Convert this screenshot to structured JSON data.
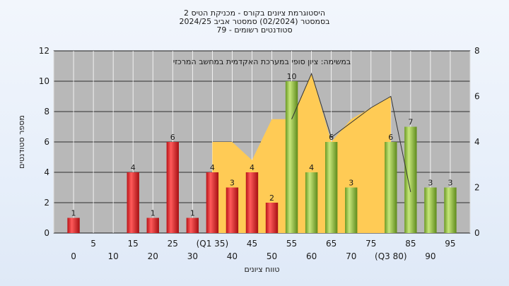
{
  "chart_data": {
    "type": "bar",
    "title_lines": [
      "היסטוגרמת ציונים בקורס - מכניקת הטיס 2",
      "בסמסטר  (02/2024)  סמסטר אביב 2024/25",
      "סטודנטים רשומים - 79"
    ],
    "annotation": "במשימה: ציון סופי במערכת האקדמית במחשב המרכזי",
    "xlabel": "טווח ציונים",
    "ylabel": "מספר סטודנטים",
    "ylim": [
      0,
      12
    ],
    "y_ticks": [
      "0",
      "2",
      "4",
      "6",
      "8",
      "10",
      "12"
    ],
    "y2lim": [
      0,
      8
    ],
    "y2_ticks": [
      "0",
      "2",
      "4",
      "6",
      "8"
    ],
    "x_ticks_upper": [
      "5",
      "15",
      "25",
      "(Q1 35)",
      "45",
      "55",
      "65",
      "75",
      "85",
      "95"
    ],
    "x_ticks_lower": [
      "0",
      "10",
      "20",
      "30",
      "40",
      "50",
      "60",
      "70",
      "(Q3 80)",
      "90"
    ],
    "bars": [
      {
        "x": 0,
        "value": 1,
        "label": "1"
      },
      {
        "x": 5,
        "value": 0,
        "label": ""
      },
      {
        "x": 10,
        "value": 0,
        "label": ""
      },
      {
        "x": 15,
        "value": 4,
        "label": "4"
      },
      {
        "x": 20,
        "value": 1,
        "label": "1"
      },
      {
        "x": 25,
        "value": 6,
        "label": "6"
      },
      {
        "x": 30,
        "value": 1,
        "label": "1"
      },
      {
        "x": 35,
        "value": 4,
        "label": "4"
      },
      {
        "x": 40,
        "value": 3,
        "label": "3"
      },
      {
        "x": 45,
        "value": 4,
        "label": "4"
      },
      {
        "x": 50,
        "value": 2,
        "label": "2"
      },
      {
        "x": 55,
        "value": 10,
        "label": "10"
      },
      {
        "x": 60,
        "value": 4,
        "label": "4"
      },
      {
        "x": 65,
        "value": 6,
        "label": "6"
      },
      {
        "x": 70,
        "value": 3,
        "label": "3"
      },
      {
        "x": 75,
        "value": 0,
        "label": ""
      },
      {
        "x": 80,
        "value": 6,
        "label": "6"
      },
      {
        "x": 85,
        "value": 7,
        "label": "7"
      },
      {
        "x": 90,
        "value": 3,
        "label": "3"
      },
      {
        "x": 95,
        "value": 3,
        "label": "3"
      }
    ],
    "pass_threshold": 55,
    "area_series": {
      "x": [
        35,
        40,
        45,
        50,
        55,
        60,
        65,
        70,
        75,
        80
      ],
      "y2": [
        4,
        4,
        3.2,
        5,
        5,
        7,
        4,
        5,
        5.5,
        6
      ]
    },
    "line_series": {
      "x": [
        55,
        60,
        65,
        75,
        80,
        85
      ],
      "y2": [
        5,
        7,
        4.2,
        5.5,
        6,
        1.8
      ]
    },
    "grid": true,
    "colors": {
      "fail_bar": "#e0282c",
      "pass_bar": "#8fbd3f",
      "area": "#ffcb55",
      "plot_bg": "#b8b8b8"
    }
  }
}
